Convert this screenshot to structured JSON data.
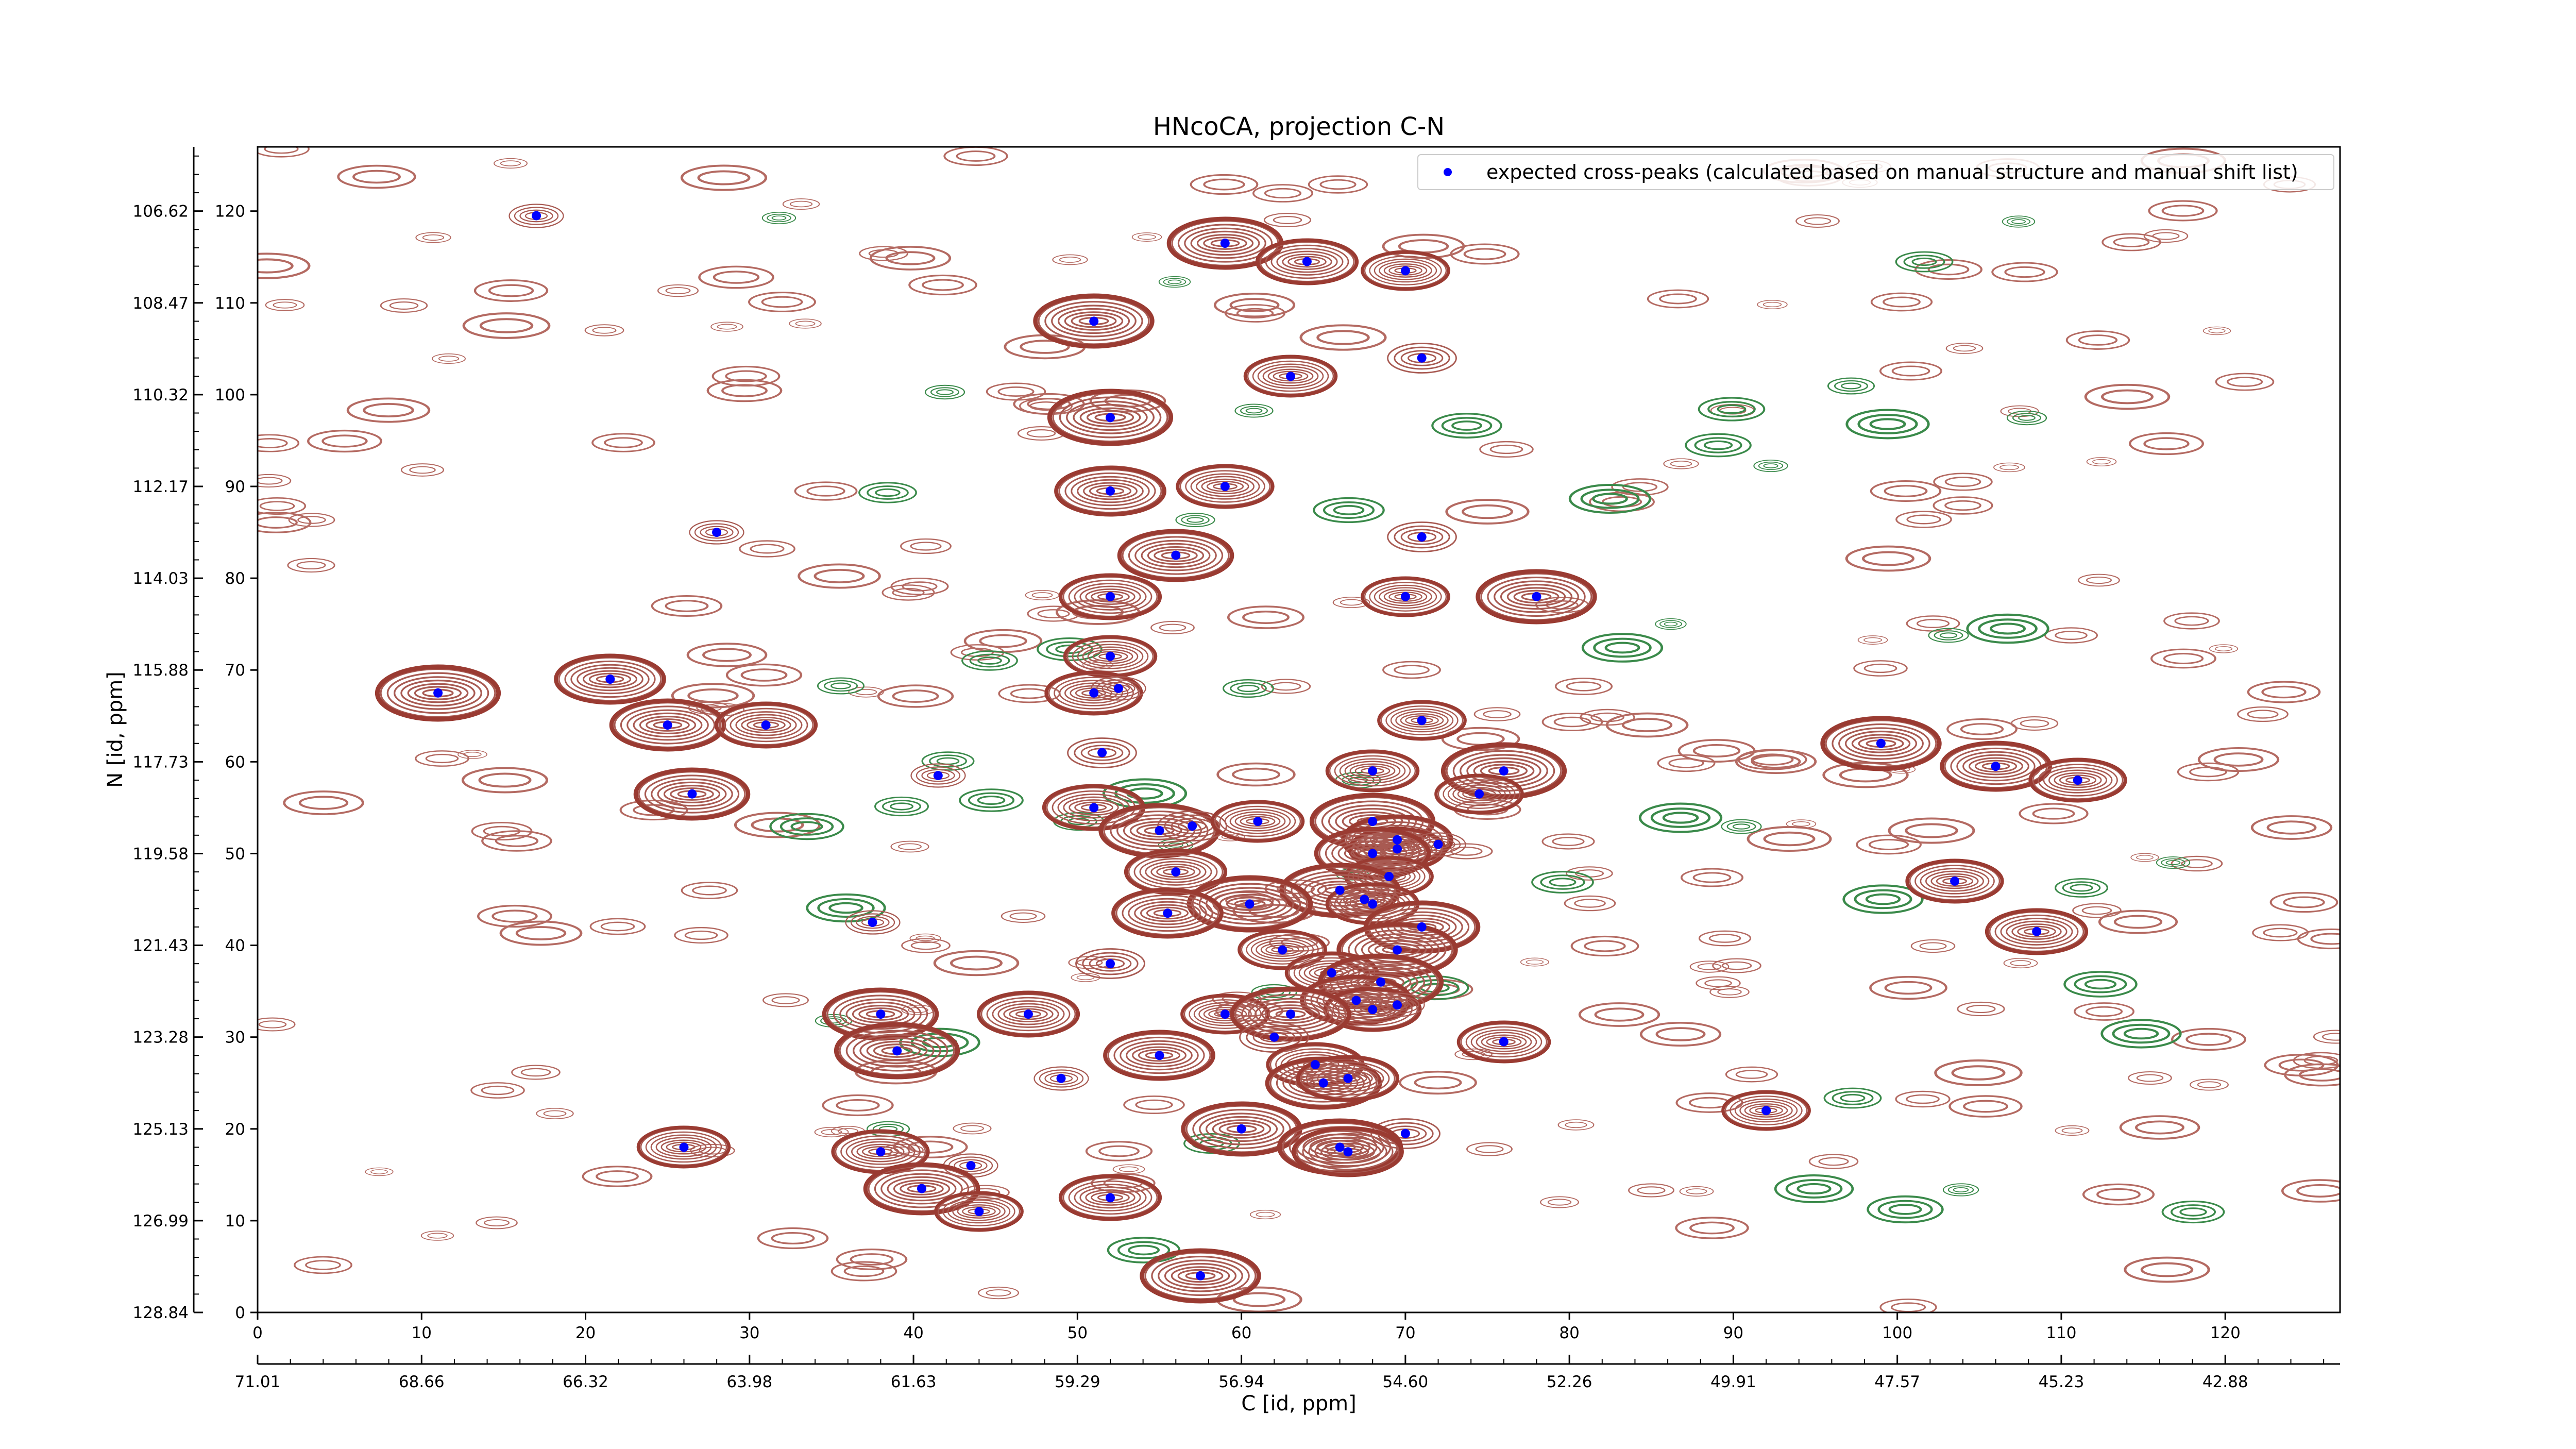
{
  "chart_data": {
    "type": "scatter",
    "title": "HNcoCA, projection C-N",
    "xlabel": "C [id, ppm]",
    "ylabel": "N [id, ppm]",
    "xlim": [
      0,
      127
    ],
    "ylim": [
      0,
      127
    ],
    "x_ticks": [
      "0",
      "10",
      "20",
      "30",
      "40",
      "50",
      "60",
      "70",
      "80",
      "90",
      "100",
      "110",
      "120"
    ],
    "y_ticks": [
      "0",
      "10",
      "20",
      "30",
      "40",
      "50",
      "60",
      "70",
      "80",
      "90",
      "100",
      "110",
      "120"
    ],
    "x_ppm_ticks": [
      "71.01",
      "68.66",
      "66.32",
      "63.98",
      "61.63",
      "59.29",
      "56.94",
      "54.60",
      "52.26",
      "49.91",
      "47.57",
      "45.23",
      "42.88"
    ],
    "y_ppm_ticks": [
      "128.84",
      "126.99",
      "125.13",
      "123.28",
      "121.43",
      "119.58",
      "117.73",
      "115.88",
      "114.03",
      "112.17",
      "110.32",
      "108.47",
      "106.62"
    ],
    "legend": {
      "label": "expected cross-peaks (calculated based on manual structure and manual shift list)",
      "position": "top-right"
    },
    "marker_color": "#0000ff",
    "contour_positive_color": "#a0443a",
    "contour_negative_color": "#3a8a4a",
    "points": [
      [
        17,
        119.5
      ],
      [
        59,
        116.5
      ],
      [
        64,
        114.5
      ],
      [
        70,
        113.5
      ],
      [
        51,
        108
      ],
      [
        71,
        104
      ],
      [
        63,
        102
      ],
      [
        52,
        97.5
      ],
      [
        52,
        89.5
      ],
      [
        59,
        90
      ],
      [
        28,
        85
      ],
      [
        56,
        82.5
      ],
      [
        52,
        78
      ],
      [
        70,
        78
      ],
      [
        78,
        78
      ],
      [
        71,
        84.5
      ],
      [
        52,
        71.5
      ],
      [
        11,
        67.5
      ],
      [
        21.5,
        69
      ],
      [
        51,
        67.5
      ],
      [
        52.5,
        68
      ],
      [
        25,
        64
      ],
      [
        31,
        64
      ],
      [
        71,
        64.5
      ],
      [
        99,
        62
      ],
      [
        51.5,
        61
      ],
      [
        68,
        59
      ],
      [
        76,
        59
      ],
      [
        106,
        59.5
      ],
      [
        111,
        58
      ],
      [
        41.5,
        58.5
      ],
      [
        26.5,
        56.5
      ],
      [
        51,
        55
      ],
      [
        74.5,
        56.5
      ],
      [
        55,
        52.5
      ],
      [
        57,
        53
      ],
      [
        61,
        53.5
      ],
      [
        68,
        53.5
      ],
      [
        69.5,
        51.5
      ],
      [
        69.5,
        50.5
      ],
      [
        72,
        51
      ],
      [
        68,
        50
      ],
      [
        56,
        48
      ],
      [
        69,
        47.5
      ],
      [
        66,
        46
      ],
      [
        67.5,
        45
      ],
      [
        68,
        44.5
      ],
      [
        60.5,
        44.5
      ],
      [
        55.5,
        43.5
      ],
      [
        103.5,
        47
      ],
      [
        37.5,
        42.5
      ],
      [
        71,
        42
      ],
      [
        108.5,
        41.5
      ],
      [
        62.5,
        39.5
      ],
      [
        69.5,
        39.5
      ],
      [
        52,
        38
      ],
      [
        65.5,
        37
      ],
      [
        68.5,
        36
      ],
      [
        67,
        34
      ],
      [
        68,
        33
      ],
      [
        69.5,
        33.5
      ],
      [
        38,
        32.5
      ],
      [
        47,
        32.5
      ],
      [
        59,
        32.5
      ],
      [
        63,
        32.5
      ],
      [
        62,
        30
      ],
      [
        76,
        29.5
      ],
      [
        39,
        28.5
      ],
      [
        55,
        28
      ],
      [
        64.5,
        27
      ],
      [
        49,
        25.5
      ],
      [
        65,
        25
      ],
      [
        66.5,
        25.5
      ],
      [
        92,
        22
      ],
      [
        60,
        20
      ],
      [
        70,
        19.5
      ],
      [
        26,
        18
      ],
      [
        66,
        18
      ],
      [
        66.5,
        17.5
      ],
      [
        38,
        17.5
      ],
      [
        43.5,
        16
      ],
      [
        40.5,
        13.5
      ],
      [
        52,
        12.5
      ],
      [
        44,
        11
      ],
      [
        57.5,
        4
      ]
    ]
  }
}
